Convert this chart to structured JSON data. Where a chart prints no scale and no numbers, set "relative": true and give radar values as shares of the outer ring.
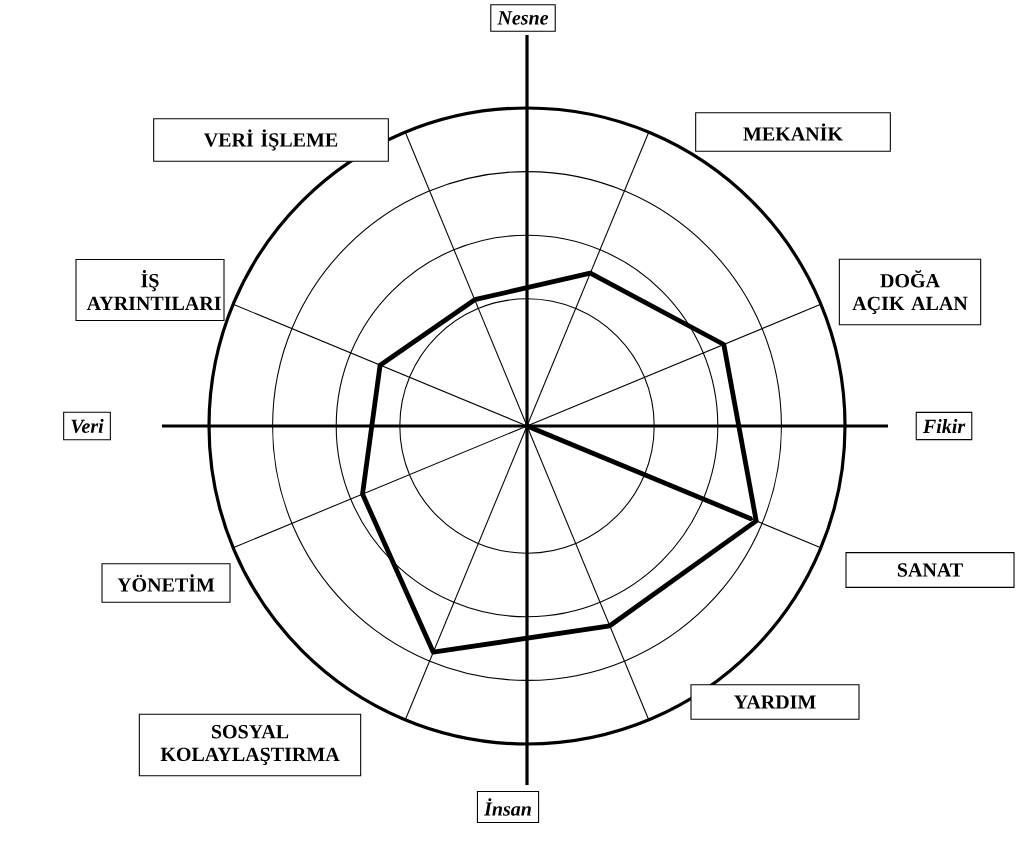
{
  "chart_data": {
    "type": "radar",
    "relative": true,
    "grid": true,
    "categories": [
      "VERİ İŞLEME",
      "MEKANİK",
      "DOĞA AÇIK ALAN",
      "SANAT",
      "YARDIM",
      "SOSYAL KOLAYLAŞTIRMA",
      "YÖNETİM",
      "İŞ AYRINTILARI"
    ],
    "series": [
      {
        "color": "#000000",
        "values": [
          0.43,
          0.52,
          0.67,
          0.78,
          0.68,
          0.77,
          0.56,
          0.5
        ]
      },
      {
        "color": "#000000",
        "values": [
          0,
          0,
          0,
          0.76,
          0,
          0,
          0,
          0
        ]
      }
    ],
    "annotations": [
      "Nesne",
      "Fikir",
      "İnsan",
      "Veri"
    ]
  }
}
